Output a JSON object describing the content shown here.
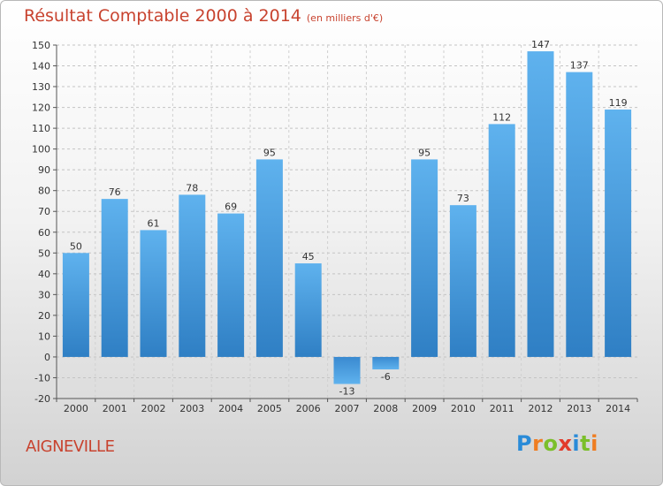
{
  "chart_data": {
    "type": "bar",
    "title": "Résultat Comptable 2000 à 2014",
    "subtitle": "(en milliers d'€)",
    "categories": [
      "2000",
      "2001",
      "2002",
      "2003",
      "2004",
      "2005",
      "2006",
      "2007",
      "2008",
      "2009",
      "2010",
      "2011",
      "2012",
      "2013",
      "2014"
    ],
    "values": [
      50,
      76,
      61,
      78,
      69,
      95,
      45,
      -13,
      -6,
      95,
      73,
      112,
      147,
      137,
      119
    ],
    "ylim": [
      -20,
      150
    ],
    "ytick_step": 10,
    "grid": true,
    "bar_color": "#4a9ee0"
  },
  "commune": "AIGNEVILLE",
  "logo": {
    "letters": [
      "P",
      "r",
      "o",
      "x",
      "i",
      "t",
      "i"
    ],
    "colors": [
      "#2a8bd8",
      "#ef7d22",
      "#7bbf2a",
      "#e23a2a",
      "#2a8bd8",
      "#7bbf2a",
      "#ef7d22"
    ]
  }
}
